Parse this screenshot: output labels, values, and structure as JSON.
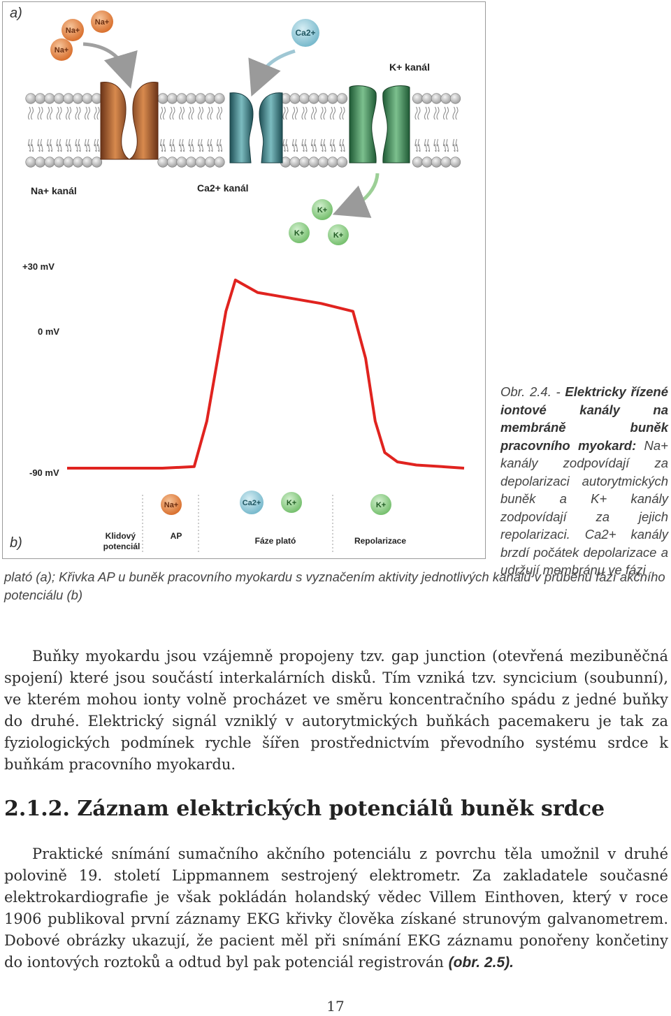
{
  "figure": {
    "label_a": "a)",
    "label_b": "b)",
    "ions": {
      "na": "Na+",
      "ca": "Ca2+",
      "k": "K+"
    },
    "channel_labels": {
      "na": "Na+ kanál",
      "ca": "Ca2+ kanál",
      "k": "K+ kanál"
    },
    "graph": {
      "y_ticks": [
        "+30 mV",
        "0 mV",
        "-90 mV"
      ],
      "phases": [
        "Klidový potenciál",
        "AP",
        "Fáze plató",
        "Repolarizace"
      ],
      "chart_data": {
        "type": "line",
        "y_ticks_mv": [
          30,
          0,
          -90
        ],
        "series": [
          {
            "x": [
              0,
              10,
              30,
              40,
              44,
              50,
              53,
              60,
              80,
              90,
              94,
              97,
              100,
              104,
              110,
              118,
              125
            ],
            "y": [
              -90,
              -90,
              -90,
              -89,
              -60,
              10,
              30,
              22,
              15,
              10,
              -20,
              -60,
              -80,
              -86,
              -88,
              -89,
              -90
            ]
          }
        ]
      }
    }
  },
  "caption": {
    "bold": "Obr. 2.4. - Elektricky řízené iontové kanály na membráně buněk pracovního myokard:",
    "obr": "Obr. 2.4. -",
    "bold_rest": "Elektricky řízené iontové kanály na membráně buněk pracovního myokard:",
    "side": " Na+ kanály zodpovídají za depolarizaci autorytmických buněk a K+ kanály zodpovídají za jejich repolarizaci. Ca2+ kanály brzdí počátek depolarizace a udržují membránu ve fázi",
    "full": "plató (a); Křivka AP u buněk pracovního myokardu s vyznačením aktivity jednotlivých kanálů v průběhu fází akčního potenciálu (b)"
  },
  "para1": "Buňky myokardu jsou vzájemně propojeny tzv. gap junction (otevřená mezibuněčná spojení) které jsou součástí interkalárních disků. Tím vzniká tzv. syncicium (soubunní), ve kterém mohou ionty volně procházet ve směru koncentračního spádu z jedné buňky do druhé. Elektrický signál vzniklý v autorytmických buňkách pacemakeru je tak za fyziologických podmínek rychle šířen prostřednictvím převodního systému srdce k buňkám pracovního myokardu.",
  "heading": "2.1.2. Záznam elektrických potenciálů buněk srdce",
  "para2": "Praktické snímání sumačního akčního potenciálu z povrchu těla umožnil v druhé polovině 19. století Lippmannem sestrojený elektrometr. Za zakladatele současné elektrokardiografie je však pokládán holandský vědec Villem Einthoven, který v roce 1906 publikoval první záznamy EKG křivky člověka získané strunovým galvanometrem. Dobové obrázky ukazují, že pacient měl při snímání EKG záznamu ponořeny končetiny do iontových roztoků a odtud byl pak potenciál registrován",
  "para2_ref": "(obr. 2.5).",
  "page_number": "17",
  "colors": {
    "curve": "#e0231f",
    "na_ion": "#e3874a",
    "ca_ion": "#8ec9d8",
    "k_ion": "#8fcf8a",
    "na_channel": "#c46a33",
    "ca_channel": "#3a7f86",
    "k_channel": "#3e8c5c"
  }
}
